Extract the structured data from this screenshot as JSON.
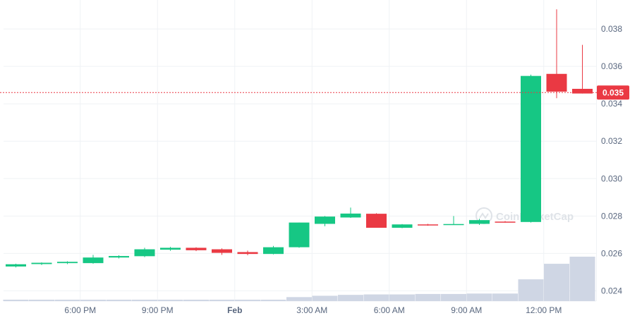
{
  "chart_data": {
    "type": "candlestick",
    "watermark": "CoinMarketCap",
    "current_price_label": "0.035",
    "current_price": 0.0346,
    "y_ticks": [
      0.024,
      0.026,
      0.028,
      0.03,
      0.032,
      0.034,
      0.036,
      0.038
    ],
    "y_tick_labels": [
      "0.024",
      "0.026",
      "0.028",
      "0.030",
      "0.032",
      "0.034",
      "0.036",
      "0.038"
    ],
    "ylim": [
      0.02345,
      0.03955
    ],
    "x_ticks": [
      {
        "label": "6:00 PM",
        "at": 3,
        "bold": false
      },
      {
        "label": "9:00 PM",
        "at": 6,
        "bold": false
      },
      {
        "label": "Feb",
        "at": 9,
        "bold": true
      },
      {
        "label": "3:00 AM",
        "at": 12,
        "bold": false
      },
      {
        "label": "6:00 AM",
        "at": 15,
        "bold": false
      },
      {
        "label": "9:00 AM",
        "at": 18,
        "bold": false
      },
      {
        "label": "12:00 PM",
        "at": 21,
        "bold": false
      }
    ],
    "candles": [
      {
        "o": 0.0253,
        "h": 0.02545,
        "l": 0.02525,
        "c": 0.02542
      },
      {
        "o": 0.02543,
        "h": 0.02552,
        "l": 0.02538,
        "c": 0.0255
      },
      {
        "o": 0.02548,
        "h": 0.02558,
        "l": 0.02543,
        "c": 0.02555
      },
      {
        "o": 0.02548,
        "h": 0.02592,
        "l": 0.02545,
        "c": 0.02578
      },
      {
        "o": 0.02578,
        "h": 0.0259,
        "l": 0.02573,
        "c": 0.02586
      },
      {
        "o": 0.02585,
        "h": 0.0263,
        "l": 0.0258,
        "c": 0.02622
      },
      {
        "o": 0.0262,
        "h": 0.02635,
        "l": 0.02614,
        "c": 0.0263
      },
      {
        "o": 0.0263,
        "h": 0.02633,
        "l": 0.02612,
        "c": 0.02617
      },
      {
        "o": 0.02622,
        "h": 0.02627,
        "l": 0.02592,
        "c": 0.02603
      },
      {
        "o": 0.02607,
        "h": 0.02615,
        "l": 0.0259,
        "c": 0.02597
      },
      {
        "o": 0.02597,
        "h": 0.0264,
        "l": 0.02595,
        "c": 0.02633
      },
      {
        "o": 0.02633,
        "h": 0.02765,
        "l": 0.0263,
        "c": 0.02765
      },
      {
        "o": 0.02758,
        "h": 0.028,
        "l": 0.02745,
        "c": 0.02797
      },
      {
        "o": 0.02792,
        "h": 0.02845,
        "l": 0.0279,
        "c": 0.02813
      },
      {
        "o": 0.02812,
        "h": 0.02815,
        "l": 0.02737,
        "c": 0.02737
      },
      {
        "o": 0.02737,
        "h": 0.02757,
        "l": 0.02735,
        "c": 0.02755
      },
      {
        "o": 0.02755,
        "h": 0.02758,
        "l": 0.02748,
        "c": 0.02753
      },
      {
        "o": 0.02755,
        "h": 0.028,
        "l": 0.02752,
        "c": 0.02757
      },
      {
        "o": 0.02758,
        "h": 0.02785,
        "l": 0.02752,
        "c": 0.02778
      },
      {
        "o": 0.0277,
        "h": 0.02773,
        "l": 0.02765,
        "c": 0.02767
      },
      {
        "o": 0.02768,
        "h": 0.03556,
        "l": 0.02765,
        "c": 0.03549
      },
      {
        "o": 0.0356,
        "h": 0.03905,
        "l": 0.0343,
        "c": 0.03465
      },
      {
        "o": 0.0348,
        "h": 0.03715,
        "l": 0.03455,
        "c": 0.03455
      }
    ],
    "volume": [
      0.02,
      0.02,
      0.02,
      0.02,
      0.02,
      0.02,
      0.02,
      0.02,
      0.02,
      0.02,
      0.02,
      0.09,
      0.12,
      0.14,
      0.15,
      0.15,
      0.16,
      0.16,
      0.17,
      0.17,
      0.49,
      0.84,
      1.0
    ],
    "colors": {
      "up": "#16c784",
      "down": "#ea3943",
      "volume": "#cfd6e4",
      "grid": "#eff2f5",
      "axis_text": "#58667e",
      "price_line": "#ea3943",
      "watermark": "#dfe3e8"
    }
  }
}
